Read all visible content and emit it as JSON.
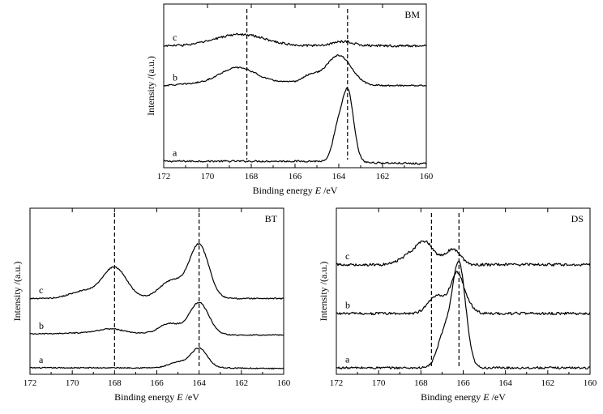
{
  "figure": {
    "panels_count": 3
  },
  "chart_data": [
    {
      "id": "BM",
      "type": "line",
      "title": "BM",
      "xlabel": "Binding energy",
      "xlabel_symbol": "E",
      "xlabel_unit": "/eV",
      "ylabel": "Intensity /(a.u.)",
      "xlim": [
        172,
        160
      ],
      "xticks": [
        172,
        170,
        168,
        166,
        164,
        162,
        160
      ],
      "grid": false,
      "reference_lines": [
        168.2,
        163.6
      ],
      "series": [
        {
          "name": "a",
          "offset": 0.0,
          "noise": 0.012,
          "baseline": [
            [
              172,
              0
            ],
            [
              165,
              0
            ],
            [
              162.6,
              -0.02
            ],
            [
              160,
              -0.035
            ]
          ],
          "peaks": [
            [
              163.6,
              1.0,
              0.38
            ],
            [
              164.1,
              0.35,
              0.3
            ]
          ]
        },
        {
          "name": "b",
          "offset": 1.05,
          "noise": 0.01,
          "baseline": [
            [
              172,
              0
            ],
            [
              169.5,
              0.05
            ],
            [
              166.5,
              0.05
            ],
            [
              162.6,
              0.0
            ],
            [
              160,
              0.0
            ]
          ],
          "peaks": [
            [
              168.6,
              0.2,
              1.1
            ],
            [
              164.0,
              0.4,
              0.8
            ],
            [
              165.3,
              0.1,
              0.5
            ]
          ]
        },
        {
          "name": "c",
          "offset": 1.6,
          "noise": 0.016,
          "baseline": [
            [
              172,
              0
            ],
            [
              160,
              0
            ]
          ],
          "peaks": [
            [
              168.5,
              0.16,
              1.6
            ],
            [
              163.8,
              0.06,
              0.7
            ]
          ]
        }
      ]
    },
    {
      "id": "BT",
      "type": "line",
      "title": "BT",
      "xlabel": "Binding energy",
      "xlabel_symbol": "E",
      "xlabel_unit": "/eV",
      "ylabel": "Intensity /(a.u.)",
      "xlim": [
        172,
        160
      ],
      "xticks": [
        172,
        170,
        168,
        166,
        164,
        162,
        160
      ],
      "grid": false,
      "reference_lines": [
        168.0,
        164.0
      ],
      "series": [
        {
          "name": "a",
          "offset": 0.0,
          "noise": 0.006,
          "baseline": [
            [
              172,
              0
            ],
            [
              166,
              0
            ],
            [
              163,
              0.0
            ],
            [
              160,
              -0.01
            ]
          ],
          "peaks": [
            [
              164.0,
              0.22,
              0.55
            ],
            [
              165.0,
              0.06,
              0.6
            ]
          ]
        },
        {
          "name": "b",
          "offset": 0.38,
          "noise": 0.006,
          "baseline": [
            [
              172,
              0
            ],
            [
              168,
              0.02
            ],
            [
              166,
              0.0
            ],
            [
              163,
              -0.01
            ],
            [
              160,
              -0.01
            ]
          ],
          "peaks": [
            [
              164.0,
              0.36,
              0.65
            ],
            [
              165.4,
              0.12,
              0.7
            ],
            [
              168.2,
              0.04,
              0.8
            ]
          ]
        },
        {
          "name": "c",
          "offset": 0.78,
          "noise": 0.007,
          "baseline": [
            [
              172,
              0
            ],
            [
              160,
              0
            ]
          ],
          "peaks": [
            [
              164.0,
              0.6,
              0.65
            ],
            [
              165.3,
              0.2,
              0.8
            ],
            [
              168.0,
              0.35,
              0.8
            ],
            [
              169.5,
              0.08,
              0.9
            ]
          ]
        }
      ]
    },
    {
      "id": "DS",
      "type": "line",
      "title": "DS",
      "xlabel": "Binding energy",
      "xlabel_symbol": "E",
      "xlabel_unit": "/eV",
      "ylabel": "Intensity /(a.u.)",
      "xlim": [
        172,
        160
      ],
      "xticks": [
        172,
        170,
        168,
        166,
        164,
        162,
        160
      ],
      "grid": false,
      "reference_lines": [
        167.5,
        166.2
      ],
      "series": [
        {
          "name": "a",
          "offset": 0.0,
          "noise": 0.01,
          "baseline": [
            [
              172,
              0
            ],
            [
              160,
              0
            ]
          ],
          "peaks": [
            [
              166.2,
              0.95,
              0.45
            ],
            [
              166.9,
              0.3,
              0.45
            ]
          ]
        },
        {
          "name": "b",
          "offset": 0.5,
          "noise": 0.012,
          "baseline": [
            [
              172,
              0
            ],
            [
              160,
              0
            ]
          ],
          "peaks": [
            [
              166.3,
              0.35,
              0.4
            ],
            [
              167.2,
              0.17,
              0.6
            ],
            [
              165.8,
              0.08,
              0.4
            ]
          ]
        },
        {
          "name": "c",
          "offset": 0.95,
          "noise": 0.013,
          "baseline": [
            [
              172,
              0
            ],
            [
              160,
              0
            ]
          ],
          "peaks": [
            [
              167.8,
              0.2,
              0.6
            ],
            [
              166.5,
              0.14,
              0.5
            ],
            [
              168.6,
              0.07,
              0.6
            ]
          ]
        }
      ]
    }
  ]
}
